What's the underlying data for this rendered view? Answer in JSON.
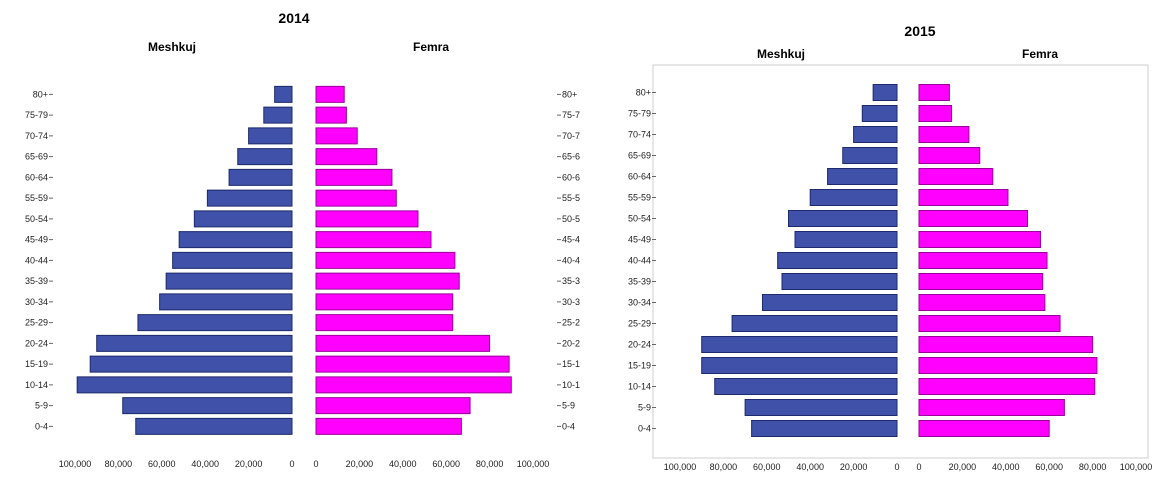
{
  "chart_data": [
    {
      "type": "bar",
      "title": "2014",
      "orientation": "horizontal population pyramid",
      "categories": [
        "0-4",
        "5-9",
        "10-14",
        "15-19",
        "20-24",
        "25-29",
        "30-34",
        "35-39",
        "40-44",
        "45-49",
        "50-54",
        "55-59",
        "60-64",
        "65-69",
        "70-74",
        "75-79",
        "80+"
      ],
      "series": [
        {
          "name": "Meshkuj",
          "color": "#3f51a8",
          "values": [
            72000,
            78000,
            99000,
            93000,
            90000,
            71000,
            61000,
            58000,
            55000,
            52000,
            45000,
            39000,
            29000,
            25000,
            20000,
            13000,
            8000
          ]
        },
        {
          "name": "Femra",
          "color": "#ff00ff",
          "values": [
            67000,
            71000,
            90000,
            89000,
            80000,
            63000,
            63000,
            66000,
            64000,
            53000,
            47000,
            37000,
            35000,
            28000,
            19000,
            14000,
            13000
          ]
        }
      ],
      "xticks": [
        "100,000",
        "80,000",
        "60,000",
        "40,000",
        "20,000",
        "0",
        "0",
        "20,000",
        "40,000",
        "60,000",
        "80,000",
        "100,000"
      ],
      "xlim": [
        0,
        100000
      ],
      "grid": false
    },
    {
      "type": "bar",
      "title": "2015",
      "orientation": "horizontal population pyramid",
      "categories": [
        "0-4",
        "5-9",
        "10-14",
        "15-19",
        "20-24",
        "25-29",
        "30-34",
        "35-39",
        "40-44",
        "45-49",
        "50-54",
        "55-59",
        "60-64",
        "65-69",
        "70-74",
        "75-79",
        "80+"
      ],
      "series": [
        {
          "name": "Meshkuj",
          "color": "#3f51a8",
          "values": [
            67000,
            70000,
            84000,
            90000,
            90000,
            76000,
            62000,
            53000,
            55000,
            47000,
            50000,
            40000,
            32000,
            25000,
            20000,
            16000,
            11000
          ]
        },
        {
          "name": "Femra",
          "color": "#ff00ff",
          "values": [
            60000,
            67000,
            81000,
            82000,
            80000,
            65000,
            58000,
            57000,
            59000,
            56000,
            50000,
            41000,
            34000,
            28000,
            23000,
            15000,
            14000
          ]
        }
      ],
      "xticks": [
        "100,000",
        "80,000",
        "60,000",
        "40,000",
        "20,000",
        "0",
        "0",
        "20,000",
        "40,000",
        "60,000",
        "80,000",
        "100,000"
      ],
      "xlim": [
        0,
        100000
      ],
      "grid": false
    }
  ]
}
